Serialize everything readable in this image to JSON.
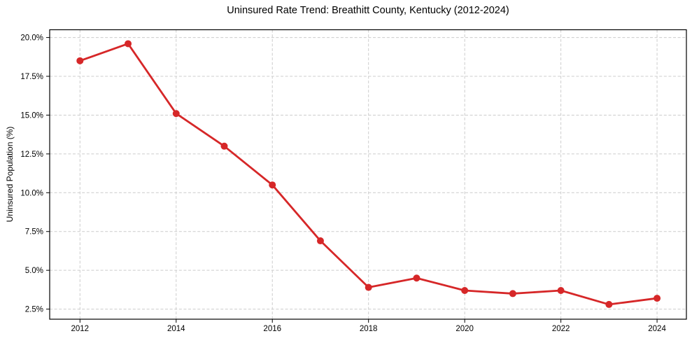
{
  "chart_data": {
    "type": "line",
    "title": "Uninsured Rate Trend: Breathitt County, Kentucky (2012-2024)",
    "ylabel": "Uninsured Population (%)",
    "xlabel": "",
    "x": [
      2012,
      2013,
      2014,
      2015,
      2016,
      2017,
      2018,
      2019,
      2020,
      2021,
      2022,
      2023,
      2024
    ],
    "values": [
      18.5,
      19.6,
      15.1,
      13.0,
      10.5,
      6.9,
      3.9,
      4.5,
      3.7,
      3.5,
      3.7,
      2.8,
      3.2
    ],
    "xtick_values": [
      2012,
      2014,
      2016,
      2018,
      2020,
      2022,
      2024
    ],
    "xtick_labels": [
      "2012",
      "2014",
      "2016",
      "2018",
      "2020",
      "2022",
      "2024"
    ],
    "ytick_values": [
      2.5,
      5.0,
      7.5,
      10.0,
      12.5,
      15.0,
      17.5,
      20.0
    ],
    "ytick_labels": [
      "2.5%",
      "5.0%",
      "7.5%",
      "10.0%",
      "12.5%",
      "15.0%",
      "17.5%",
      "20.0%"
    ],
    "xlim": [
      2011.37,
      2024.61
    ],
    "ylim": [
      1.85,
      20.5
    ],
    "grid": true,
    "grid_style": "dashed",
    "legend": "none",
    "marker": "circle",
    "colors": {
      "line": "#d62728",
      "grid": "#cccccc",
      "spine": "#000000",
      "text": "#000000",
      "background": "#ffffff"
    }
  }
}
